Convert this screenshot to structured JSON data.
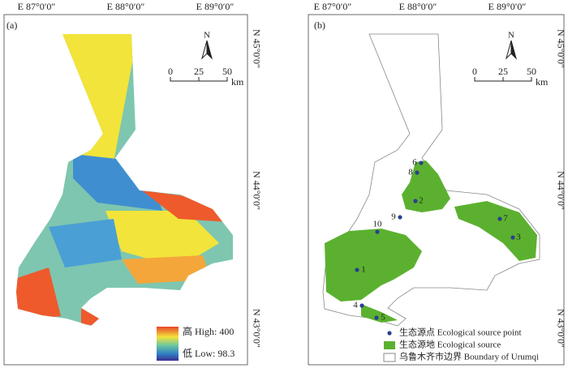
{
  "panels": [
    {
      "label": "(a)",
      "lon_labels": [
        "E 87°0′0″",
        "E 88°0′0″",
        "E 89°0′0″"
      ],
      "lat_labels": [
        "N 45°0′0″",
        "N 44°0′0″",
        "N 43°0′0″"
      ],
      "north": "N",
      "scale": {
        "ticks": [
          "0",
          "25",
          "50"
        ],
        "unit": "km"
      },
      "legend": {
        "high": "高 High: 400",
        "low": "低 Low: 98.3"
      }
    },
    {
      "label": "(b)",
      "lon_labels": [
        "E 87°0′0″",
        "E 88°0′0″",
        "E 89°0′0″"
      ],
      "lat_labels": [
        "N 45°0′0″",
        "N 44°0′0″",
        "N 43°0′0″"
      ],
      "north": "N",
      "scale": {
        "ticks": [
          "0",
          "25",
          "50"
        ],
        "unit": "km"
      },
      "points": [
        "1",
        "2",
        "3",
        "4",
        "5",
        "6",
        "7",
        "8",
        "9",
        "10"
      ],
      "legend": {
        "point": "生态源点 Ecological source point",
        "source": "生态源地 Ecological source",
        "boundary": "乌鲁木齐市边界 Boundary of Urumqi"
      }
    }
  ]
}
